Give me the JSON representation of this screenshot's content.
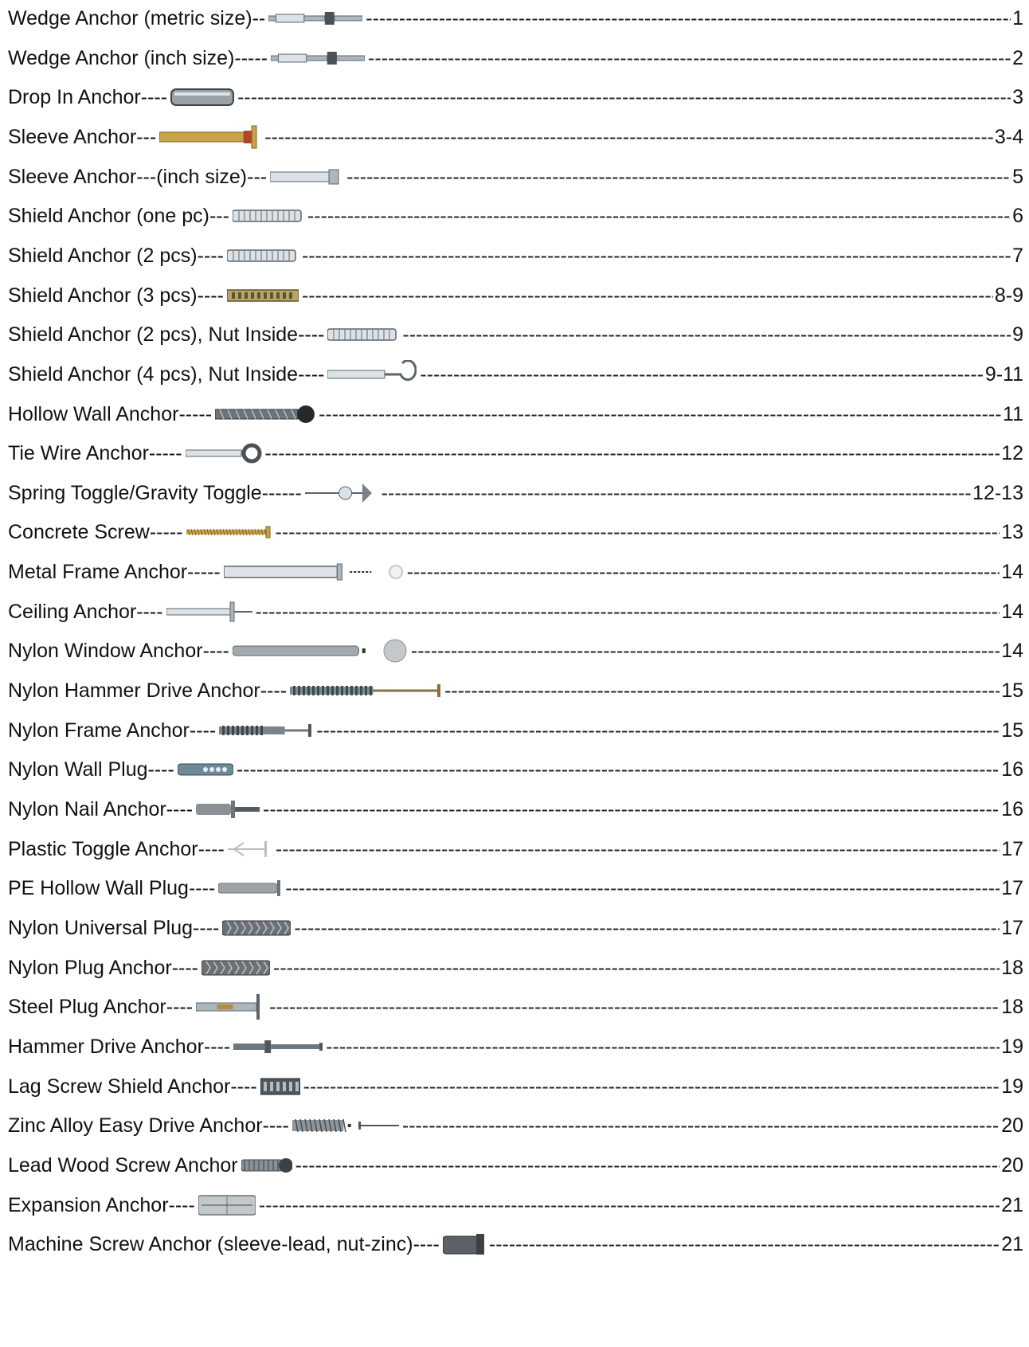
{
  "toc": {
    "entries": [
      {
        "label": "Wedge Anchor (metric size)",
        "pre": "--",
        "page": "1",
        "icon": "wedge-anchor-metric-icon",
        "shape": "bolt"
      },
      {
        "label": "Wedge Anchor (inch size)",
        "pre": "-----",
        "page": "2",
        "icon": "wedge-anchor-inch-icon",
        "shape": "bolt"
      },
      {
        "label": "Drop In Anchor",
        "pre": "----",
        "page": "3",
        "icon": "drop-in-anchor-icon",
        "shape": "cylinder"
      },
      {
        "label": "Sleeve Anchor",
        "pre": "---",
        "page": "3-4",
        "icon": "sleeve-anchor-icon",
        "shape": "sleeve-gold"
      },
      {
        "label": "Sleeve Anchor---(inch size)",
        "pre": "---",
        "page": "5",
        "icon": "sleeve-anchor-inch-icon",
        "shape": "sleeve"
      },
      {
        "label": "Shield Anchor (one pc)",
        "pre": "---",
        "page": "6",
        "icon": "shield-anchor-one-pc-icon",
        "shape": "shield"
      },
      {
        "label": "Shield Anchor (2 pcs)",
        "pre": "----",
        "page": "7",
        "icon": "shield-anchor-2pcs-icon",
        "shape": "shield"
      },
      {
        "label": "Shield Anchor (3 pcs)",
        "pre": "----",
        "page": "8-9",
        "icon": "shield-anchor-3pcs-icon",
        "shape": "shield-gold"
      },
      {
        "label": "Shield Anchor (2 pcs), Nut Inside",
        "pre": "----",
        "page": "9",
        "icon": "shield-anchor-nut-inside-icon",
        "shape": "shield"
      },
      {
        "label": "Shield Anchor (4 pcs), Nut Inside",
        "pre": "----",
        "page": "9-11",
        "icon": "shield-anchor-hook-icon",
        "shape": "hook"
      },
      {
        "label": "Hollow Wall Anchor",
        "pre": "-----",
        "page": "11",
        "icon": "hollow-wall-anchor-icon",
        "shape": "hollow"
      },
      {
        "label": "Tie Wire Anchor",
        "pre": "-----",
        "page": "12",
        "icon": "tie-wire-anchor-icon",
        "shape": "eye"
      },
      {
        "label": "Spring Toggle/Gravity Toggle",
        "pre": "------",
        "page": "12-13",
        "icon": "spring-toggle-icon",
        "shape": "toggle"
      },
      {
        "label": "Concrete Screw",
        "pre": "-----",
        "page": "13",
        "icon": "concrete-screw-icon",
        "shape": "screw-gold"
      },
      {
        "label": "Metal Frame Anchor",
        "pre": "-----",
        "page": "14",
        "icon": "metal-frame-anchor-icon",
        "shape": "frame"
      },
      {
        "label": "Ceiling Anchor",
        "pre": "----",
        "page": "14",
        "icon": "ceiling-anchor-icon",
        "shape": "ceiling"
      },
      {
        "label": "Nylon Window Anchor",
        "pre": "----",
        "page": "14",
        "icon": "nylon-window-anchor-icon",
        "shape": "window"
      },
      {
        "label": "Nylon Hammer Drive Anchor",
        "pre": "----",
        "page": "15",
        "icon": "nylon-hammer-drive-anchor-icon",
        "shape": "nylon-nail"
      },
      {
        "label": "Nylon Frame Anchor",
        "pre": "----",
        "page": "15",
        "icon": "nylon-frame-anchor-icon",
        "shape": "nylon-frame"
      },
      {
        "label": "Nylon Wall Plug",
        "pre": "----",
        "page": "16",
        "icon": "nylon-wall-plug-icon",
        "shape": "plug"
      },
      {
        "label": "Nylon Nail Anchor",
        "pre": "----",
        "page": "16",
        "icon": "nylon-nail-anchor-icon",
        "shape": "nail-plug"
      },
      {
        "label": "Plastic Toggle Anchor",
        "pre": "----",
        "page": "17",
        "icon": "plastic-toggle-anchor-icon",
        "shape": "plastic-toggle"
      },
      {
        "label": "PE Hollow Wall Plug",
        "pre": "----",
        "page": "17",
        "icon": "pe-hollow-wall-plug-icon",
        "shape": "pe-plug"
      },
      {
        "label": "Nylon Universal Plug",
        "pre": "----",
        "page": "17",
        "icon": "nylon-universal-plug-icon",
        "shape": "universal"
      },
      {
        "label": "Nylon Plug Anchor",
        "pre": "----",
        "page": "18",
        "icon": "nylon-plug-anchor-icon",
        "shape": "universal"
      },
      {
        "label": "Steel Plug Anchor",
        "pre": "----",
        "page": "18",
        "icon": "steel-plug-anchor-icon",
        "shape": "steel-plug"
      },
      {
        "label": "Hammer Drive Anchor",
        "pre": "----",
        "page": "19",
        "icon": "hammer-drive-anchor-icon",
        "shape": "hammer"
      },
      {
        "label": "Lag Screw Shield Anchor",
        "pre": "----",
        "page": "19",
        "icon": "lag-screw-shield-anchor-icon",
        "shape": "lag"
      },
      {
        "label": "Zinc Alloy Easy Drive Anchor",
        "pre": "----",
        "page": "20",
        "icon": "zinc-alloy-easy-drive-anchor-icon",
        "shape": "easy-drive"
      },
      {
        "label": "Lead Wood Screw Anchor",
        "pre": "",
        "page": "20",
        "icon": "lead-wood-screw-anchor-icon",
        "shape": "lead"
      },
      {
        "label": "Expansion Anchor",
        "pre": "----",
        "page": "21",
        "icon": "expansion-anchor-icon",
        "shape": "expansion"
      },
      {
        "label": "Machine Screw Anchor (sleeve-lead, nut-zinc)",
        "pre": "----",
        "page": "21",
        "icon": "machine-screw-anchor-icon",
        "shape": "machine"
      }
    ]
  }
}
